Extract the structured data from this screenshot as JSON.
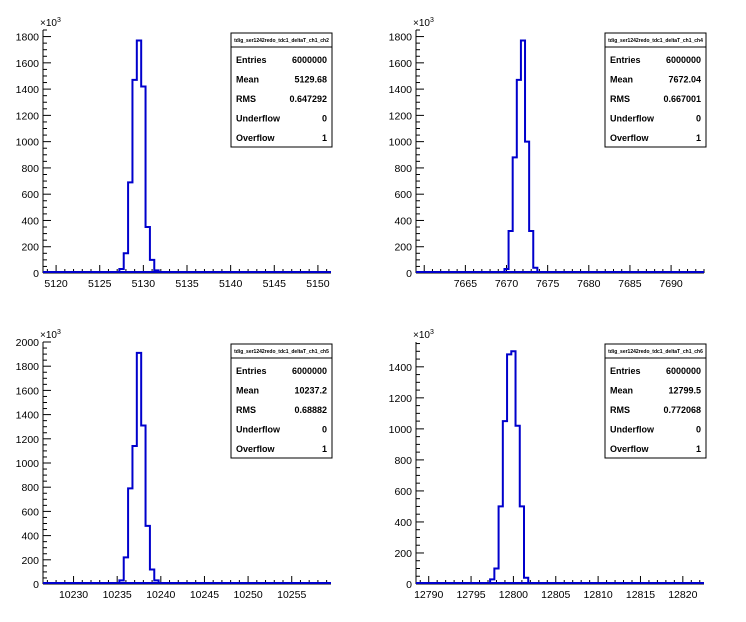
{
  "colors": {
    "histogram": "#0000cc",
    "axis": "#000000",
    "background": "#ffffff"
  },
  "exponent_label": "×10",
  "exponent_power": "3",
  "stat_labels": {
    "entries": "Entries",
    "mean": "Mean",
    "rms": "RMS",
    "underflow": "Underflow",
    "overflow": "Overflow"
  },
  "chart_data": [
    {
      "type": "bar",
      "title": "tdig_ser1242redo_tdc1_deltaT_ch1_ch2",
      "xlabel": "",
      "ylabel": "",
      "xlim": [
        5118.5,
        5151.5
      ],
      "ylim": [
        0,
        1850
      ],
      "xticks": [
        "5120",
        "5125",
        "5130",
        "5135",
        "5140",
        "5145",
        "5150"
      ],
      "yticks": [
        "0",
        "200",
        "400",
        "600",
        "800",
        "1000",
        "1200",
        "1400",
        "1600",
        "1800"
      ],
      "y_scale_label": "×10^3",
      "bins": [
        {
          "x": 5127.5,
          "y": 30
        },
        {
          "x": 5128,
          "y": 150
        },
        {
          "x": 5128.5,
          "y": 690
        },
        {
          "x": 5129,
          "y": 1470
        },
        {
          "x": 5129.5,
          "y": 1770
        },
        {
          "x": 5130,
          "y": 1420
        },
        {
          "x": 5130.5,
          "y": 350
        },
        {
          "x": 5131,
          "y": 100
        },
        {
          "x": 5131.5,
          "y": 20
        }
      ],
      "stats": {
        "entries": "6000000",
        "mean": "5129.68",
        "rms": "0.647292",
        "underflow": "0",
        "overflow": "1"
      }
    },
    {
      "type": "bar",
      "title": "tdig_ser1242redo_tdc1_deltaT_ch1_ch4",
      "xlabel": "",
      "ylabel": "",
      "xlim": [
        7659,
        7694
      ],
      "ylim": [
        0,
        1850
      ],
      "xticks": [
        "7665",
        "7670",
        "7675",
        "7680",
        "7685",
        "7690"
      ],
      "yticks": [
        "0",
        "200",
        "400",
        "600",
        "800",
        "1000",
        "1200",
        "1400",
        "1600",
        "1800"
      ],
      "y_scale_label": "×10^3",
      "bins": [
        {
          "x": 7670,
          "y": 30
        },
        {
          "x": 7670.5,
          "y": 320
        },
        {
          "x": 7671,
          "y": 880
        },
        {
          "x": 7671.5,
          "y": 1470
        },
        {
          "x": 7672,
          "y": 1770
        },
        {
          "x": 7672.5,
          "y": 1000
        },
        {
          "x": 7673,
          "y": 320
        },
        {
          "x": 7673.5,
          "y": 40
        }
      ],
      "stats": {
        "entries": "6000000",
        "mean": "7672.04",
        "rms": "0.667001",
        "underflow": "0",
        "overflow": "1"
      }
    },
    {
      "type": "bar",
      "title": "tdig_ser1242redo_tdc1_deltaT_ch1_ch5",
      "xlabel": "",
      "ylabel": "",
      "xlim": [
        10226.5,
        10259.5
      ],
      "ylim": [
        0,
        2000
      ],
      "xticks": [
        "10230",
        "10235",
        "10240",
        "10245",
        "10250",
        "10255"
      ],
      "yticks": [
        "0",
        "200",
        "400",
        "600",
        "800",
        "1000",
        "1200",
        "1400",
        "1600",
        "1800",
        "2000"
      ],
      "y_scale_label": "×10^3",
      "bins": [
        {
          "x": 10235.5,
          "y": 30
        },
        {
          "x": 10236,
          "y": 220
        },
        {
          "x": 10236.5,
          "y": 790
        },
        {
          "x": 10237,
          "y": 1140
        },
        {
          "x": 10237.5,
          "y": 1910
        },
        {
          "x": 10238,
          "y": 1310
        },
        {
          "x": 10238.5,
          "y": 480
        },
        {
          "x": 10239,
          "y": 120
        },
        {
          "x": 10239.5,
          "y": 30
        }
      ],
      "stats": {
        "entries": "6000000",
        "mean": "10237.2",
        "rms": "0.68882",
        "underflow": "0",
        "overflow": "1"
      }
    },
    {
      "type": "bar",
      "title": "tdig_ser1242redo_tdc1_deltaT_ch1_ch6",
      "xlabel": "",
      "ylabel": "",
      "xlim": [
        12788.5,
        12822.5
      ],
      "ylim": [
        0,
        1560
      ],
      "xticks": [
        "12790",
        "12795",
        "12800",
        "12805",
        "12810",
        "12815",
        "12820"
      ],
      "yticks": [
        "0",
        "200",
        "400",
        "600",
        "800",
        "1000",
        "1200",
        "1400"
      ],
      "y_scale_label": "×10^3",
      "bins": [
        {
          "x": 12797.5,
          "y": 30
        },
        {
          "x": 12798,
          "y": 100
        },
        {
          "x": 12798.5,
          "y": 500
        },
        {
          "x": 12799,
          "y": 1050
        },
        {
          "x": 12799.5,
          "y": 1480
        },
        {
          "x": 12800,
          "y": 1500
        },
        {
          "x": 12800.5,
          "y": 1020
        },
        {
          "x": 12801,
          "y": 500
        },
        {
          "x": 12801.5,
          "y": 40
        }
      ],
      "stats": {
        "entries": "6000000",
        "mean": "12799.5",
        "rms": "0.772068",
        "underflow": "0",
        "overflow": "1"
      }
    }
  ]
}
